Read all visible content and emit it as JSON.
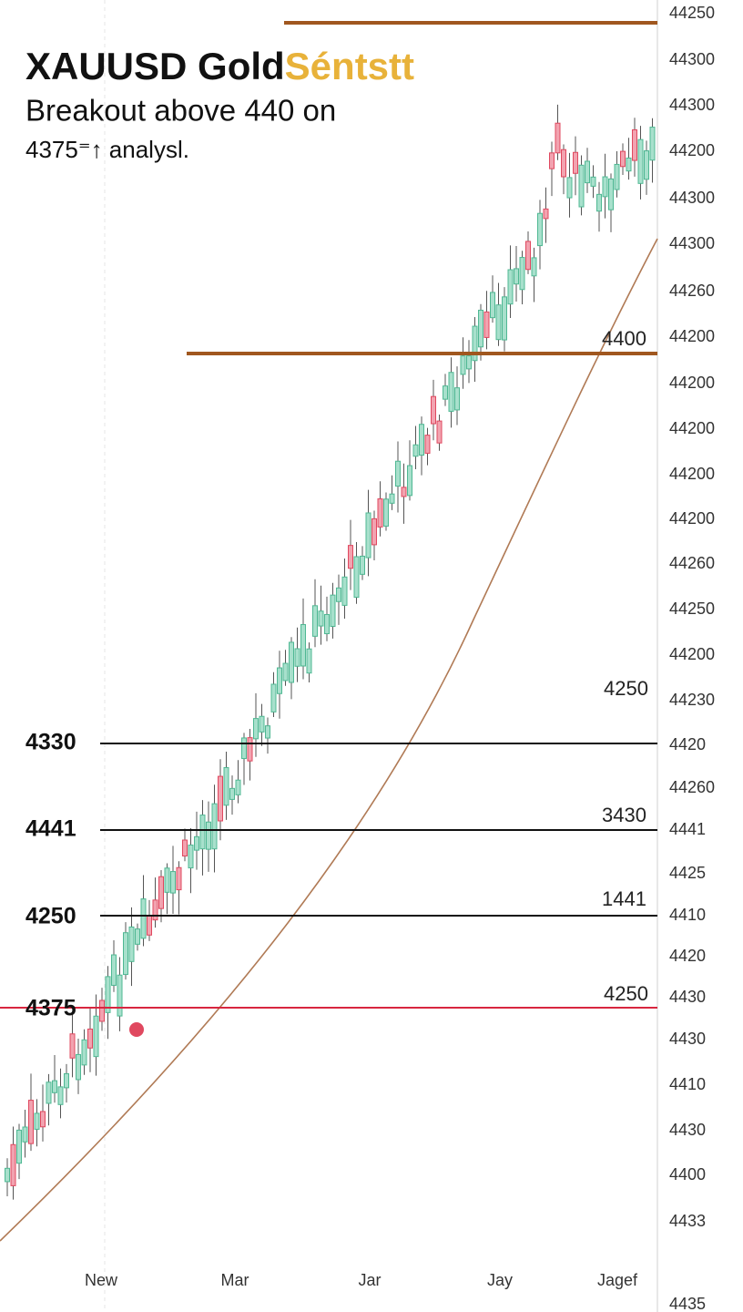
{
  "title": {
    "main": "XAUUSD Gold",
    "accent": "Séntstt"
  },
  "subtitle": "Breakout above 440 on",
  "note": "4375⁼↑ analysl.",
  "y_axis_labels": [
    "44250",
    "44300",
    "44300",
    "44200",
    "44300",
    "44300",
    "44260",
    "44200",
    "44200",
    "44200",
    "44200",
    "44200",
    "44260",
    "44250",
    "44200",
    "44230",
    "4420",
    "44260",
    "4441",
    "4425",
    "4410",
    "4420",
    "4430",
    "4430",
    "4410",
    "4430",
    "4400",
    "4433",
    "4435"
  ],
  "x_axis_labels": [
    "New",
    "Mar",
    "Jar",
    "Jay",
    "Jagef"
  ],
  "level_labels_left": [
    "4330",
    "4441",
    "4250",
    "4375"
  ],
  "level_labels_right": [
    "4400",
    "4250",
    "3430",
    "1441",
    "4250"
  ]
}
